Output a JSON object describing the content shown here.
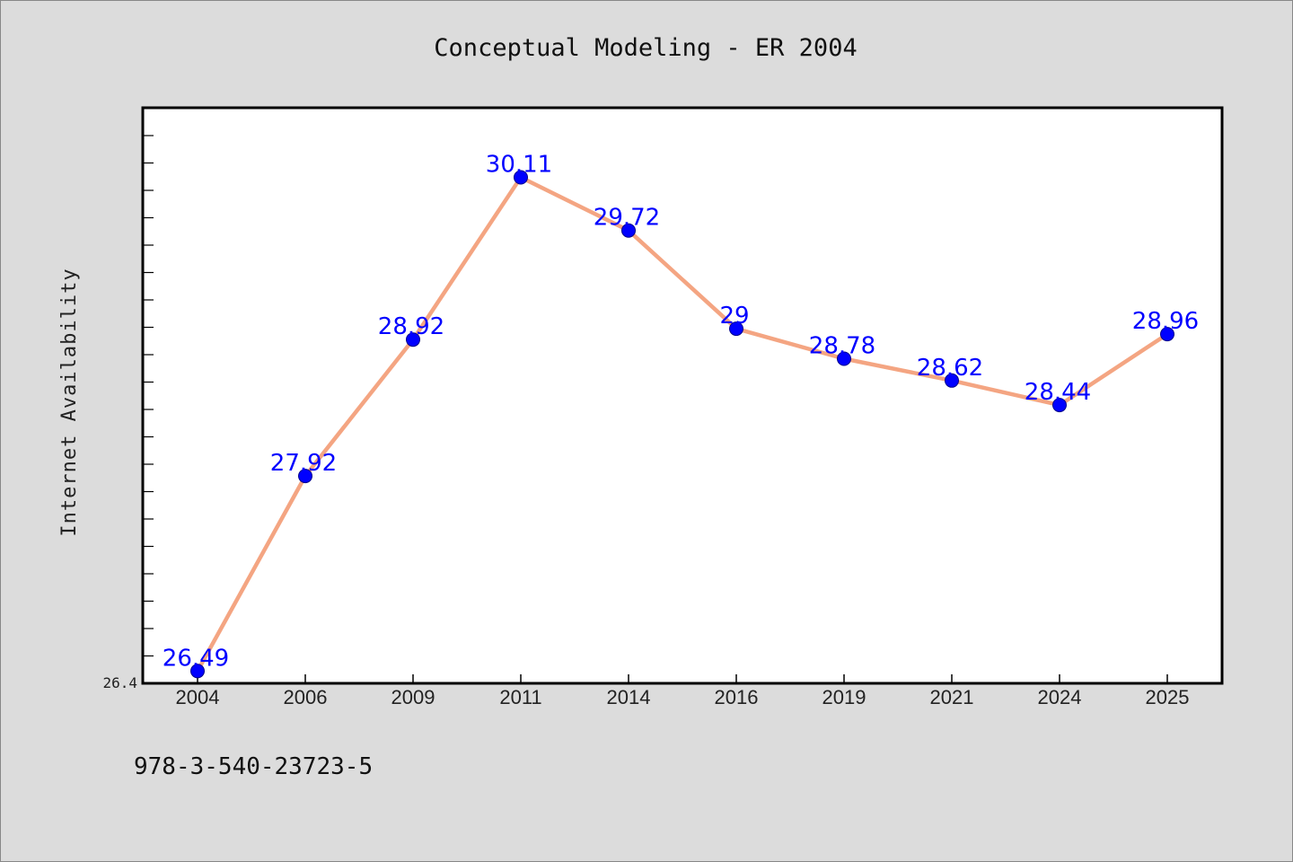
{
  "chart_data": {
    "type": "line",
    "title": "Conceptual Modeling - ER 2004",
    "xlabel": "",
    "ylabel": "Internet Availability",
    "categories": [
      "2004",
      "2006",
      "2009",
      "2011",
      "2014",
      "2016",
      "2019",
      "2021",
      "2024",
      "2025"
    ],
    "series": [
      {
        "values": [
          26.49,
          27.92,
          28.92,
          30.11,
          29.72,
          29.0,
          28.78,
          28.62,
          28.44,
          28.96
        ],
        "labels": [
          "26.49",
          "27.92",
          "28.92",
          "30.11",
          "29.72",
          "29",
          "28.78",
          "28.62",
          "28.44",
          "28.96"
        ]
      }
    ],
    "ylim": [
      26.4,
      30.62
    ],
    "y_tick_labels": [
      "26.4"
    ],
    "grid": false,
    "legend": "none",
    "colors": {
      "line": "#f4a582",
      "marker": "#0000ff",
      "data_label": "#0000ff",
      "plot_background": "#ffffff",
      "figure_background": "#dcdcdc"
    }
  },
  "footnote": "978-3-540-23723-5"
}
